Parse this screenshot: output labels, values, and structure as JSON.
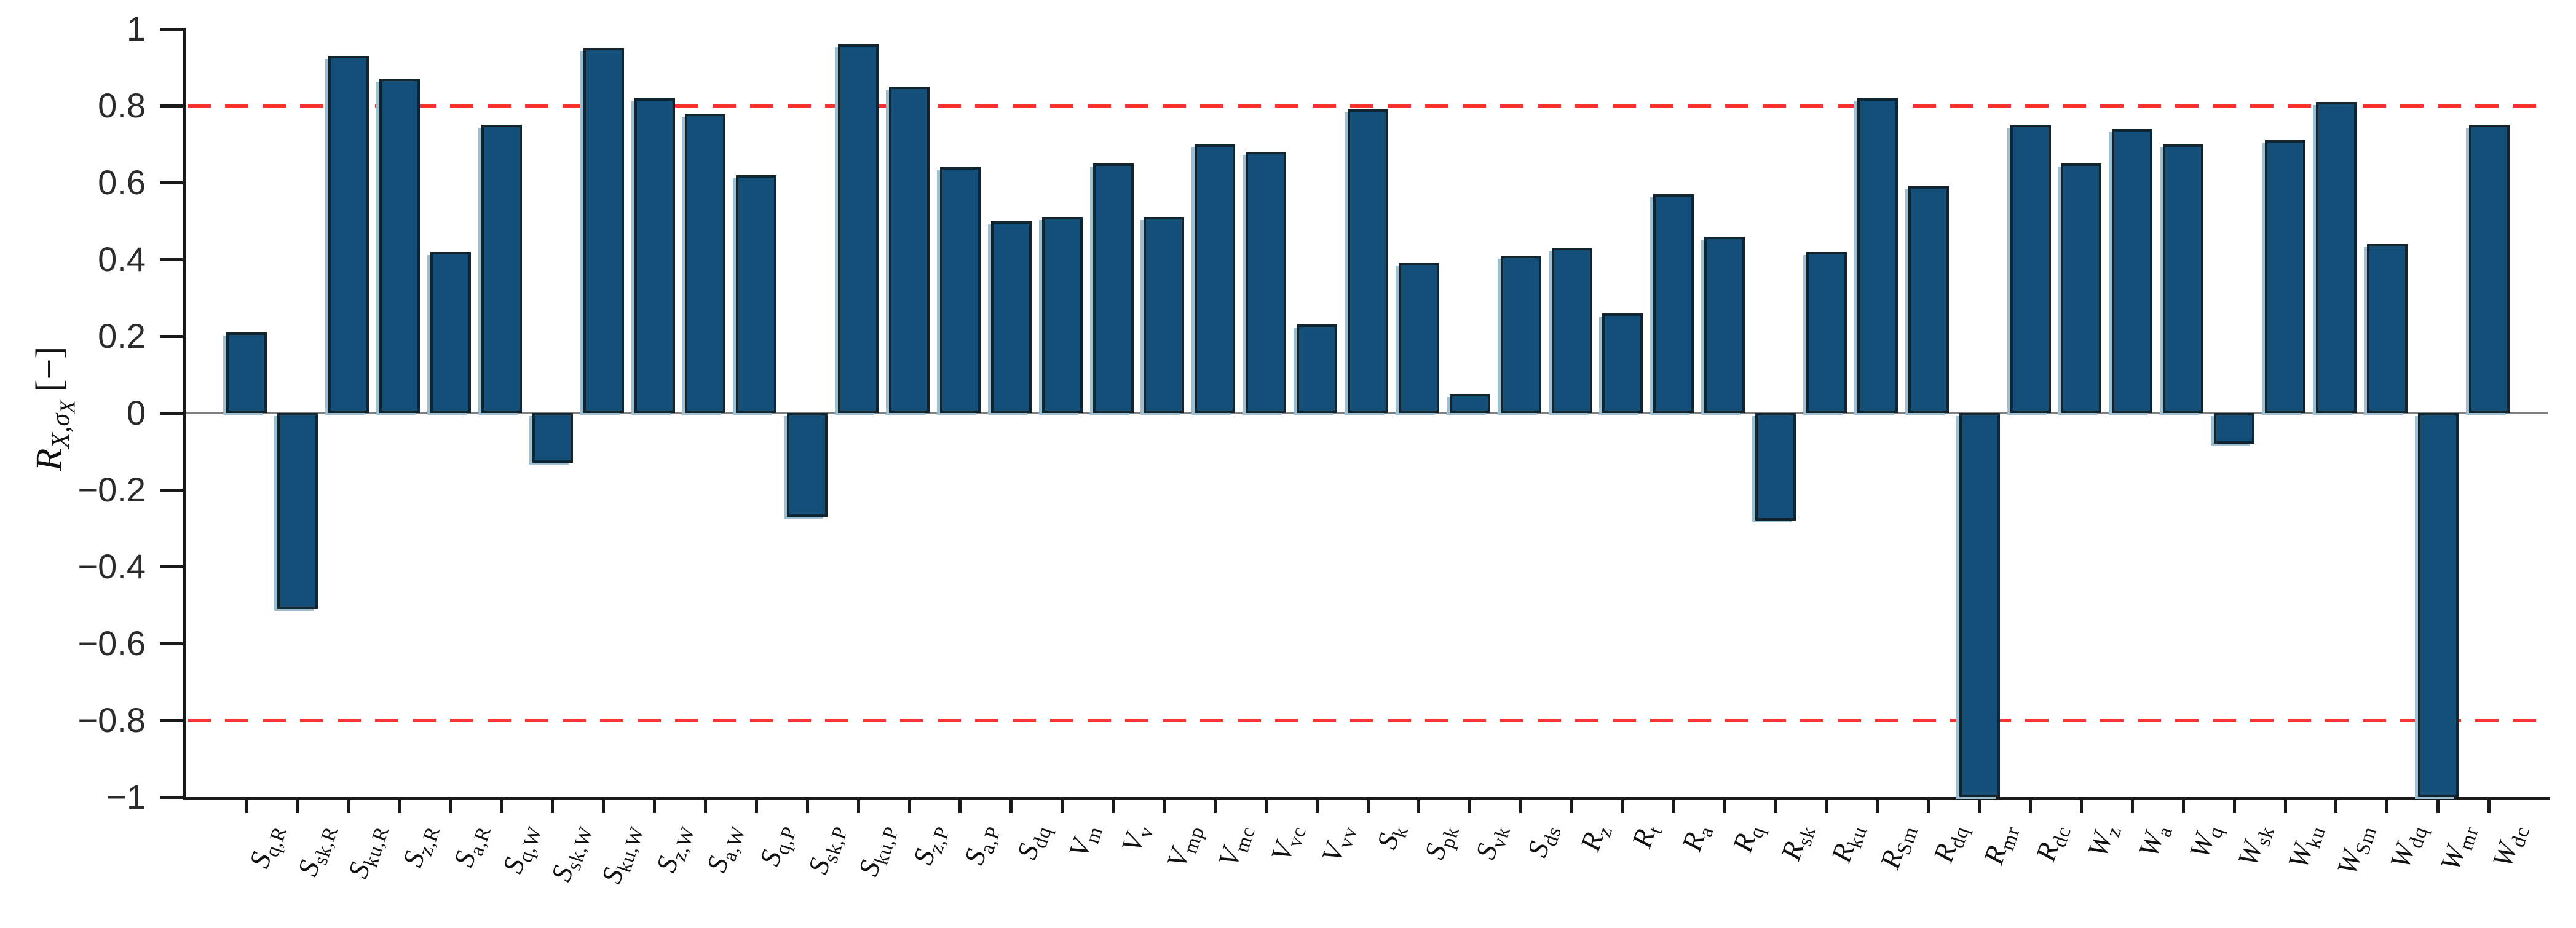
{
  "chart_data": {
    "type": "bar",
    "title": "",
    "ylabel": {
      "symbol": "R",
      "subscript": "X,σ",
      "subsubscript": "X",
      "unit": "[−]"
    },
    "ylim": [
      -1,
      1
    ],
    "ytick_values": [
      1,
      0.8,
      0.6,
      0.4,
      0.2,
      0,
      -0.2,
      -0.4,
      -0.6,
      -0.8,
      -1
    ],
    "ytick_labels": [
      "1",
      "0.8",
      "0.6",
      "0.4",
      "0.2",
      "0",
      "−0.2",
      "−0.4",
      "−0.6",
      "−0.8",
      "−1"
    ],
    "threshold_lines": {
      "values": [
        0.8,
        -0.8
      ],
      "color": "#fa3232",
      "style": "dashed"
    },
    "grid": false,
    "categories": [
      {
        "base": "S",
        "sub": "q,R"
      },
      {
        "base": "S",
        "sub": "sk,R"
      },
      {
        "base": "S",
        "sub": "ku,R"
      },
      {
        "base": "S",
        "sub": "z,R"
      },
      {
        "base": "S",
        "sub": "a,R"
      },
      {
        "base": "S",
        "sub": "q,W"
      },
      {
        "base": "S",
        "sub": "sk,W"
      },
      {
        "base": "S",
        "sub": "ku,W"
      },
      {
        "base": "S",
        "sub": "z,W"
      },
      {
        "base": "S",
        "sub": "a,W"
      },
      {
        "base": "S",
        "sub": "q,P"
      },
      {
        "base": "S",
        "sub": "sk,P"
      },
      {
        "base": "S",
        "sub": "ku,P"
      },
      {
        "base": "S",
        "sub": "z,P"
      },
      {
        "base": "S",
        "sub": "a,P"
      },
      {
        "base": "S",
        "sub": "dq"
      },
      {
        "base": "V",
        "sub": "m"
      },
      {
        "base": "V",
        "sub": "v"
      },
      {
        "base": "V",
        "sub": "mp"
      },
      {
        "base": "V",
        "sub": "mc"
      },
      {
        "base": "V",
        "sub": "vc"
      },
      {
        "base": "V",
        "sub": "vv"
      },
      {
        "base": "S",
        "sub": "k"
      },
      {
        "base": "S",
        "sub": "pk"
      },
      {
        "base": "S",
        "sub": "vk"
      },
      {
        "base": "S",
        "sub": "ds"
      },
      {
        "base": "R",
        "sub": "z"
      },
      {
        "base": "R",
        "sub": "t"
      },
      {
        "base": "R",
        "sub": "a"
      },
      {
        "base": "R",
        "sub": "q"
      },
      {
        "base": "R",
        "sub": "sk"
      },
      {
        "base": "R",
        "sub": "ku"
      },
      {
        "base": "R",
        "sub": "Sm"
      },
      {
        "base": "R",
        "sub": "dq"
      },
      {
        "base": "R",
        "sub": "mr"
      },
      {
        "base": "R",
        "sub": "dc"
      },
      {
        "base": "W",
        "sub": "z"
      },
      {
        "base": "W",
        "sub": "a"
      },
      {
        "base": "W",
        "sub": "q"
      },
      {
        "base": "W",
        "sub": "sk"
      },
      {
        "base": "W",
        "sub": "ku"
      },
      {
        "base": "W",
        "sub": "Sm"
      },
      {
        "base": "W",
        "sub": "dq"
      },
      {
        "base": "W",
        "sub": "mr"
      },
      {
        "base": "W",
        "sub": "dc"
      }
    ],
    "values": [
      0.21,
      -0.51,
      0.93,
      0.87,
      0.42,
      0.75,
      -0.13,
      0.95,
      0.82,
      0.78,
      0.62,
      -0.27,
      0.96,
      0.85,
      0.64,
      0.5,
      0.51,
      0.65,
      0.51,
      0.7,
      0.68,
      0.23,
      0.79,
      0.39,
      0.05,
      0.41,
      0.43,
      0.26,
      0.57,
      0.46,
      -0.28,
      0.42,
      0.82,
      0.59,
      -1.0,
      0.75,
      0.65,
      0.74,
      0.7,
      -0.08,
      0.71,
      0.81,
      0.44,
      -1.0,
      0.75
    ],
    "colors": {
      "bar_fill": "#134f78",
      "bar_edge": "#12242e",
      "bar_shadow": "#9cbfd1",
      "axis": "#1a1a1a",
      "zero_line": "#7f7f7f"
    }
  }
}
